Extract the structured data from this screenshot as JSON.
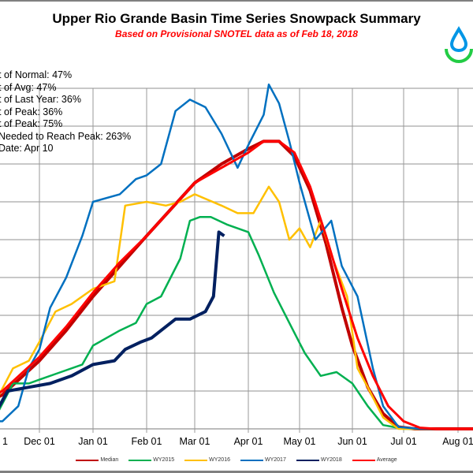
{
  "chart_data": {
    "type": "line",
    "title": "Upper Rio Grande Basin Time Series Snowpack Summary",
    "subtitle": "Based on Provisional SNOTEL data as of Feb 18, 2018",
    "xlabel": "",
    "ylabel": "",
    "x_ticks": [
      "1",
      "Dec 01",
      "Jan 01",
      "Feb 01",
      "Mar 01",
      "Apr 01",
      "May 01",
      "Jun 01",
      "Jul 01",
      "Aug 01"
    ],
    "x_unit": "months since Nov 01 (0 = Nov 01, 9 = Aug 01)",
    "y_unit": "gridline intervals (y-axis labels not visible)",
    "ylim": [
      0,
      9
    ],
    "xlim": [
      -0.25,
      9.3
    ],
    "grid": true,
    "legend_position": "bottom",
    "series": [
      {
        "name": "Median",
        "color": "#c00000",
        "points": [
          [
            -0.25,
            0.5
          ],
          [
            0.3,
            0.9
          ],
          [
            1,
            1.8
          ],
          [
            1.5,
            2.6
          ],
          [
            2,
            3.5
          ],
          [
            2.5,
            4.3
          ],
          [
            3,
            5.1
          ],
          [
            3.5,
            5.8
          ],
          [
            4,
            6.5
          ],
          [
            4.5,
            7.0
          ],
          [
            5,
            7.4
          ],
          [
            5.3,
            7.6
          ],
          [
            5.6,
            7.6
          ],
          [
            5.9,
            7.2
          ],
          [
            6.2,
            6.3
          ],
          [
            6.5,
            4.9
          ],
          [
            6.8,
            3.2
          ],
          [
            7.0,
            2.2
          ],
          [
            7.3,
            1.1
          ],
          [
            7.6,
            0.4
          ],
          [
            7.9,
            0.05
          ],
          [
            8.2,
            0
          ],
          [
            9.3,
            0
          ]
        ]
      },
      {
        "name": "WY2015",
        "color": "#00b050",
        "points": [
          [
            -0.25,
            0.2
          ],
          [
            0.2,
            0.4
          ],
          [
            0.5,
            1.2
          ],
          [
            0.8,
            1.2
          ],
          [
            1,
            1.3
          ],
          [
            1.4,
            1.5
          ],
          [
            1.8,
            1.7
          ],
          [
            2.0,
            2.2
          ],
          [
            2.5,
            2.6
          ],
          [
            2.8,
            2.8
          ],
          [
            3.0,
            3.3
          ],
          [
            3.3,
            3.5
          ],
          [
            3.5,
            4.0
          ],
          [
            3.7,
            4.5
          ],
          [
            3.9,
            5.5
          ],
          [
            4.1,
            5.6
          ],
          [
            4.3,
            5.6
          ],
          [
            4.6,
            5.4
          ],
          [
            5,
            5.2
          ],
          [
            5.2,
            4.6
          ],
          [
            5.5,
            3.6
          ],
          [
            5.8,
            2.8
          ],
          [
            6.1,
            2.0
          ],
          [
            6.4,
            1.4
          ],
          [
            6.7,
            1.5
          ],
          [
            7.0,
            1.2
          ],
          [
            7.3,
            0.6
          ],
          [
            7.6,
            0.1
          ],
          [
            8,
            0
          ],
          [
            9.3,
            0
          ]
        ]
      },
      {
        "name": "WY2016",
        "color": "#ffc000",
        "points": [
          [
            -0.25,
            0.6
          ],
          [
            0.2,
            0.8
          ],
          [
            0.5,
            1.6
          ],
          [
            0.8,
            1.8
          ],
          [
            1,
            2.3
          ],
          [
            1.3,
            3.1
          ],
          [
            1.6,
            3.3
          ],
          [
            2.0,
            3.7
          ],
          [
            2.4,
            3.9
          ],
          [
            2.6,
            5.9
          ],
          [
            3.0,
            6.0
          ],
          [
            3.4,
            5.9
          ],
          [
            3.7,
            6.0
          ],
          [
            4.0,
            6.2
          ],
          [
            4.5,
            5.9
          ],
          [
            4.8,
            5.7
          ],
          [
            5.1,
            5.7
          ],
          [
            5.4,
            6.4
          ],
          [
            5.6,
            6.0
          ],
          [
            5.8,
            5.0
          ],
          [
            6.0,
            5.3
          ],
          [
            6.2,
            4.8
          ],
          [
            6.4,
            5.5
          ],
          [
            6.6,
            4.6
          ],
          [
            6.9,
            3.5
          ],
          [
            7.1,
            1.6
          ],
          [
            7.3,
            1.1
          ],
          [
            7.6,
            0.3
          ],
          [
            7.9,
            0
          ],
          [
            9.3,
            0
          ]
        ]
      },
      {
        "name": "WY2017",
        "color": "#0070c0",
        "points": [
          [
            -0.25,
            0.2
          ],
          [
            0.3,
            0.2
          ],
          [
            0.6,
            0.6
          ],
          [
            0.8,
            1.6
          ],
          [
            1,
            2.1
          ],
          [
            1.2,
            3.2
          ],
          [
            1.5,
            4.0
          ],
          [
            1.8,
            5.1
          ],
          [
            2.0,
            6.0
          ],
          [
            2.5,
            6.2
          ],
          [
            2.8,
            6.6
          ],
          [
            3.0,
            6.7
          ],
          [
            3.3,
            7.0
          ],
          [
            3.6,
            8.4
          ],
          [
            3.9,
            8.7
          ],
          [
            4.2,
            8.5
          ],
          [
            4.5,
            7.8
          ],
          [
            4.8,
            6.9
          ],
          [
            5.0,
            7.5
          ],
          [
            5.3,
            8.3
          ],
          [
            5.4,
            9.1
          ],
          [
            5.6,
            8.6
          ],
          [
            5.8,
            7.6
          ],
          [
            6.0,
            6.5
          ],
          [
            6.3,
            5.0
          ],
          [
            6.6,
            5.5
          ],
          [
            6.8,
            4.3
          ],
          [
            7.1,
            3.5
          ],
          [
            7.4,
            1.6
          ],
          [
            7.6,
            0.6
          ],
          [
            7.9,
            0.05
          ],
          [
            8.3,
            0
          ],
          [
            9.3,
            0
          ]
        ]
      },
      {
        "name": "WY2018",
        "color": "#002060",
        "points": [
          [
            -0.25,
            0.4
          ],
          [
            0.2,
            0.5
          ],
          [
            0.4,
            1.0
          ],
          [
            0.8,
            1.1
          ],
          [
            1.2,
            1.2
          ],
          [
            1.6,
            1.4
          ],
          [
            2.0,
            1.7
          ],
          [
            2.4,
            1.8
          ],
          [
            2.6,
            2.1
          ],
          [
            2.9,
            2.3
          ],
          [
            3.1,
            2.4
          ],
          [
            3.3,
            2.6
          ],
          [
            3.6,
            2.9
          ],
          [
            3.9,
            2.9
          ],
          [
            4.2,
            3.1
          ],
          [
            4.35,
            3.5
          ],
          [
            4.45,
            5.2
          ],
          [
            4.55,
            5.1
          ]
        ]
      },
      {
        "name": "Average",
        "color": "#ff0000",
        "points": [
          [
            -0.25,
            0.6
          ],
          [
            0.3,
            1.0
          ],
          [
            1,
            1.9
          ],
          [
            1.5,
            2.7
          ],
          [
            2,
            3.6
          ],
          [
            2.5,
            4.4
          ],
          [
            3,
            5.1
          ],
          [
            3.5,
            5.8
          ],
          [
            4,
            6.5
          ],
          [
            4.5,
            6.9
          ],
          [
            5,
            7.3
          ],
          [
            5.3,
            7.6
          ],
          [
            5.6,
            7.6
          ],
          [
            5.9,
            7.3
          ],
          [
            6.2,
            6.4
          ],
          [
            6.5,
            5.1
          ],
          [
            6.8,
            3.7
          ],
          [
            7.1,
            2.4
          ],
          [
            7.4,
            1.4
          ],
          [
            7.7,
            0.6
          ],
          [
            8.0,
            0.2
          ],
          [
            8.3,
            0.03
          ],
          [
            8.6,
            0
          ],
          [
            9.3,
            0
          ]
        ]
      }
    ],
    "annotations": [
      "t of Normal: 47%",
      "t of Avg: 47%",
      "t of Last Year: 36%",
      "t of Peak: 36%",
      "t of Peak: 75%",
      " Needed to Reach Peak: 263%",
      "Date: Apr 10"
    ]
  },
  "logo": {
    "icon": "water-drop-icon",
    "drop_color": "#0096e6",
    "arc_color": "#22cc44"
  }
}
